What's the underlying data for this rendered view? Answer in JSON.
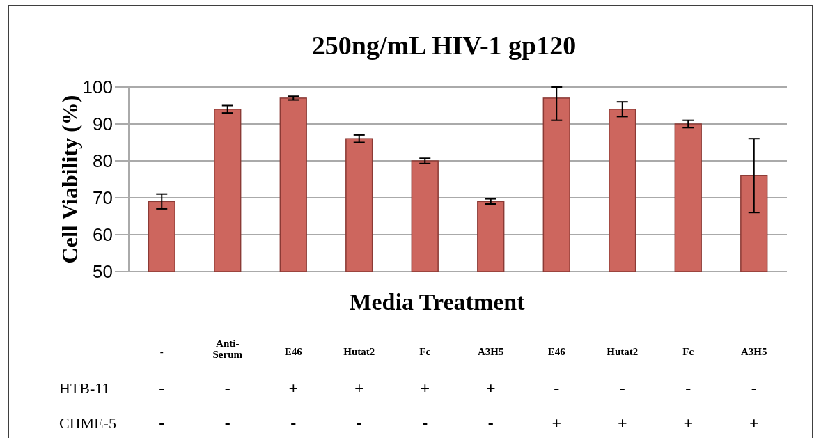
{
  "chart_data": {
    "type": "bar",
    "title": "250ng/mL HIV-1 gp120",
    "xlabel": "Media Treatment",
    "ylabel": "Cell Viability (%)",
    "categories": [
      "-",
      "Anti-Serum",
      "E46",
      "Hutat2",
      "Fc",
      "A3H5",
      "E46",
      "Hutat2",
      "Fc",
      "A3H5"
    ],
    "values": [
      69,
      94,
      97,
      86,
      80,
      69,
      97,
      94,
      90,
      76
    ],
    "errors": [
      2,
      1,
      0.5,
      1,
      0.7,
      0.7,
      [
        91,
        100
      ],
      2,
      1,
      10
    ],
    "color": "#cd665e",
    "ylim": [
      50,
      100
    ],
    "yticks": [
      50,
      60,
      70,
      80,
      90,
      100
    ],
    "grid": "y",
    "annotations": [
      "HTB-11",
      "-",
      "-",
      "+",
      "+",
      "+",
      "+",
      "-",
      "-",
      "-",
      "-",
      "CHME-5",
      "-",
      "-",
      "-",
      "-",
      "-",
      "-",
      "+",
      "+",
      "+",
      "+"
    ]
  }
}
